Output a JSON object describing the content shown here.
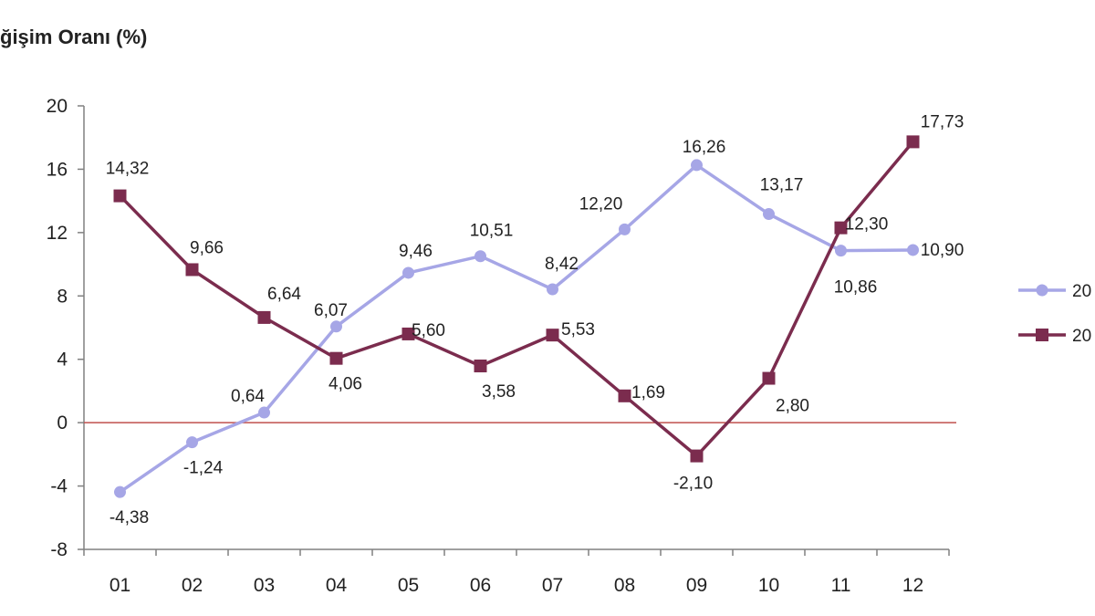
{
  "chart_data": {
    "type": "line",
    "ylabel": "ğişim Oranı (%)",
    "categories": [
      "01",
      "02",
      "03",
      "04",
      "05",
      "06",
      "07",
      "08",
      "09",
      "10",
      "11",
      "12"
    ],
    "ylim": [
      -8,
      20
    ],
    "yticks": [
      -8,
      -4,
      0,
      4,
      8,
      12,
      16,
      20
    ],
    "zero_line": true,
    "zero_line_color": "#c0504d",
    "legend_position": "right",
    "series": [
      {
        "name": "20",
        "color": "#a6a6e6",
        "marker": "circle",
        "values": [
          -4.38,
          -1.24,
          0.64,
          6.07,
          9.46,
          10.51,
          8.42,
          12.2,
          16.26,
          13.17,
          10.86,
          10.9
        ],
        "labels": [
          "-4,38",
          "-1,24",
          "0,64",
          "6,07",
          "9,46",
          "10,51",
          "8,42",
          "12,20",
          "16,26",
          "13,17",
          "10,86",
          "10,90"
        ]
      },
      {
        "name": "20",
        "color": "#7b2c4e",
        "marker": "square",
        "values": [
          14.32,
          9.66,
          6.64,
          4.06,
          5.6,
          3.58,
          5.53,
          1.69,
          -2.1,
          2.8,
          12.3,
          17.73
        ],
        "labels": [
          "14,32",
          "9,66",
          "6,64",
          "4,06",
          "5,60",
          "3,58",
          "5,53",
          "1,69",
          "-2,10",
          "2,80",
          "12,30",
          "17,73"
        ]
      }
    ]
  }
}
